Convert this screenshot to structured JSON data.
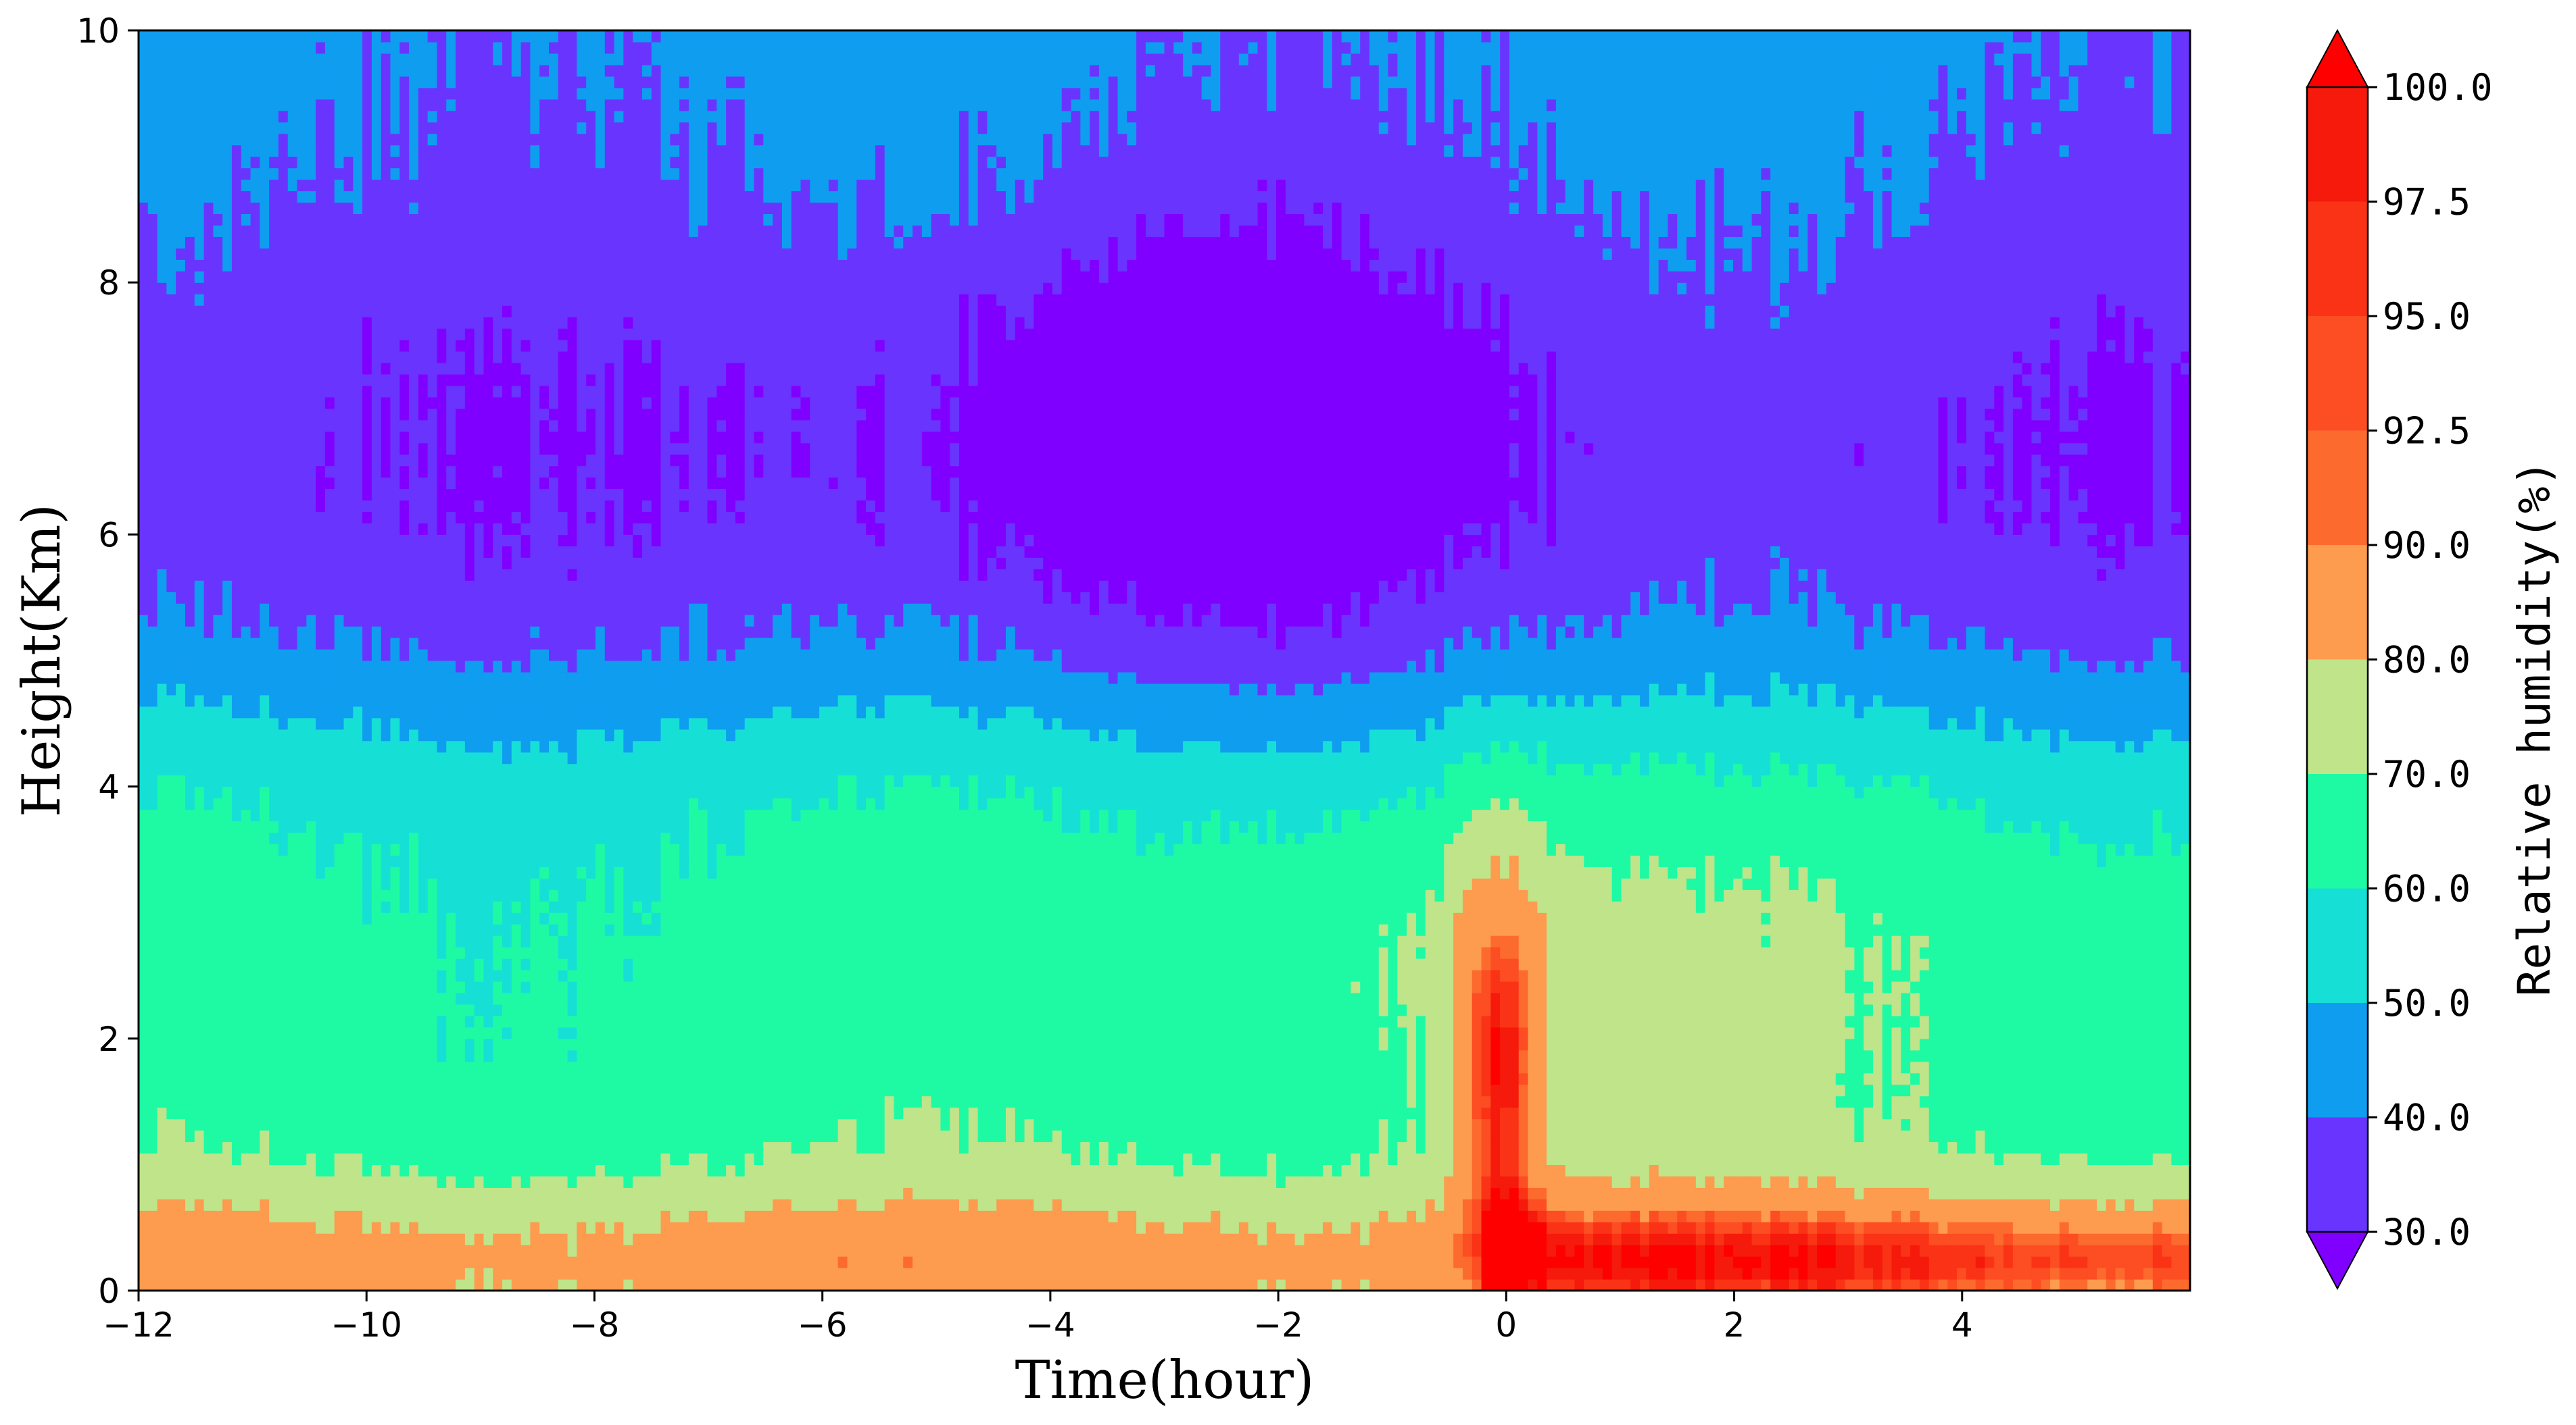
{
  "chart_data": {
    "type": "heatmap",
    "subtype": "filled-contour",
    "xlabel": "Time(hour)",
    "ylabel": "Height(Km)",
    "xlim": [
      -12,
      6
    ],
    "ylim": [
      0,
      10
    ],
    "x_ticks": [
      -12,
      -10,
      -8,
      -6,
      -4,
      -2,
      0,
      2,
      4
    ],
    "x_tick_labels": [
      "−12",
      "−10",
      "−8",
      "−6",
      "−4",
      "−2",
      "0",
      "2",
      "4"
    ],
    "y_ticks": [
      0,
      2,
      4,
      6,
      8,
      10
    ],
    "y_tick_labels": [
      "0",
      "2",
      "4",
      "6",
      "8",
      "10"
    ],
    "grid": false,
    "colorbar": {
      "label": "Relative humidity(%)",
      "levels": [
        30,
        40,
        50,
        60,
        70,
        80,
        90,
        92.5,
        95,
        97.5,
        100
      ],
      "tick_labels": [
        "30.0",
        "40.0",
        "50.0",
        "60.0",
        "70.0",
        "80.0",
        "90.0",
        "92.5",
        "95.0",
        "97.5",
        "100.0"
      ],
      "band_colors": [
        "#6a34ff",
        "#0f9df0",
        "#16e0d6",
        "#1efaa4",
        "#bfe48a",
        "#fd9b4f",
        "#fd6a2e",
        "#fd4d22",
        "#fb3316",
        "#f51a0c"
      ],
      "under_color": "#8000ff",
      "over_color": "#ff0000",
      "extend": "both"
    },
    "regions": [
      {
        "range": "30-40",
        "color": "#6a34ff",
        "name": "mid/upper troposphere, -12 to -1 h, 6-10 km"
      },
      {
        "range": "<30",
        "color": "#8000ff",
        "name": "dry core, -4.5 to -0.8 h, 6-9 km"
      },
      {
        "range": "40-50",
        "color": "#0f9df0",
        "name": "upper layer after 0 h, 5-10 km"
      },
      {
        "range": "60-70",
        "color": "#1efaa4",
        "name": "lower troposphere, 0.5-4 km"
      },
      {
        "range": "70-80",
        "color": "#bfe48a",
        "name": "boundary layer and post-event layer 0.5-3 km"
      },
      {
        "range": "80-90",
        "color": "#fd9b4f",
        "name": "surface layer and core near 0 h"
      },
      {
        "range": "90-95",
        "color": "#fd6a2e",
        "name": "peak near -0.1 h, 1-2 km"
      }
    ]
  }
}
